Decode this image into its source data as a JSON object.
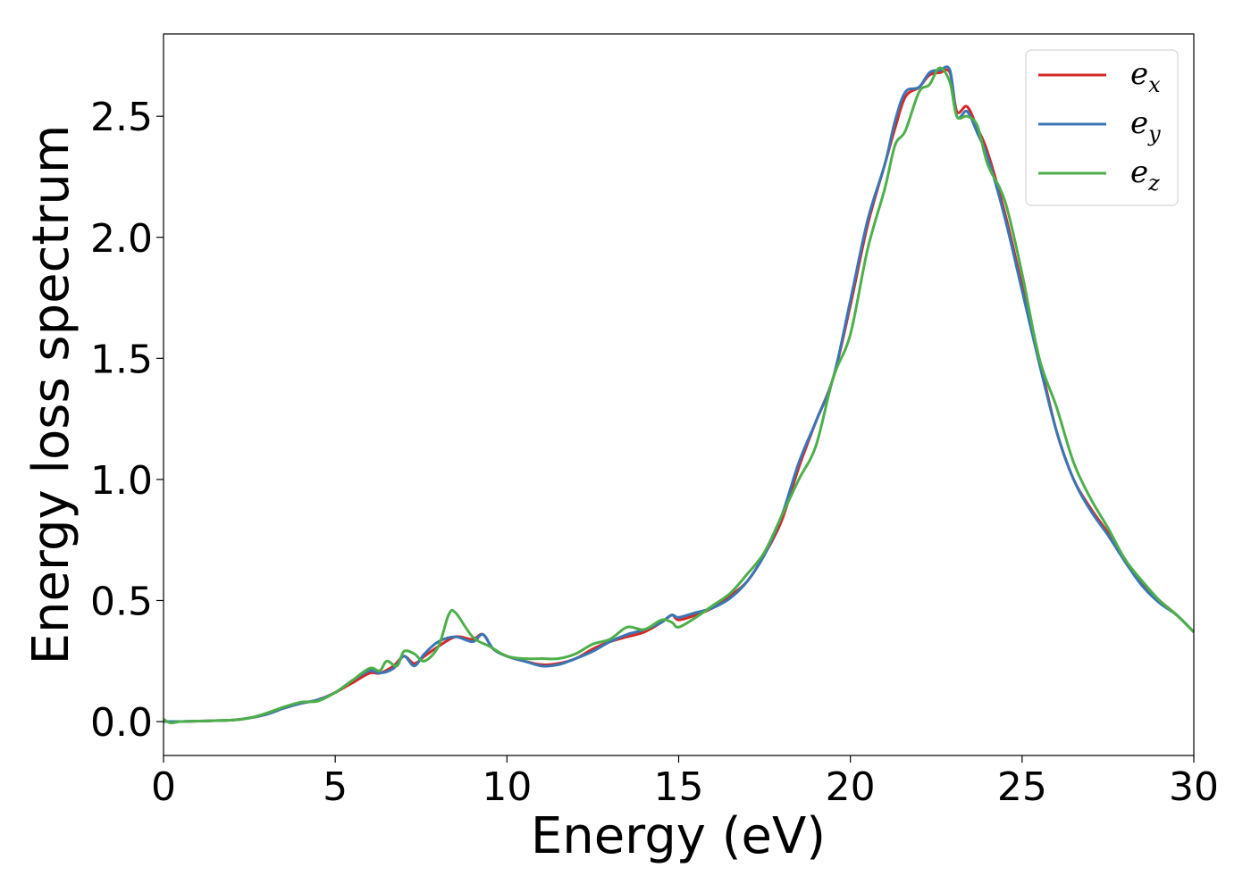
{
  "chart_data": {
    "type": "line",
    "title": "",
    "xlabel": "Energy (eV)",
    "ylabel": "Energy loss spectrum",
    "xlim": [
      0,
      30
    ],
    "ylim": [
      -0.14,
      2.84
    ],
    "xticks": [
      0,
      5,
      10,
      15,
      20,
      25,
      30
    ],
    "xtick_labels": [
      "0",
      "5",
      "10",
      "15",
      "20",
      "25",
      "30"
    ],
    "yticks": [
      0.0,
      0.5,
      1.0,
      1.5,
      2.0,
      2.5
    ],
    "ytick_labels": [
      "0.0",
      "0.5",
      "1.0",
      "1.5",
      "2.0",
      "2.5"
    ],
    "grid": false,
    "legend_position": "top-right",
    "series": [
      {
        "name": "e_x",
        "label_base": "e",
        "label_sub": "x",
        "color": "#d62728",
        "points": [
          [
            0,
            0.0
          ],
          [
            0.2,
            0.0
          ],
          [
            0.5,
            0.0
          ],
          [
            1,
            0.002
          ],
          [
            2,
            0.006
          ],
          [
            2.5,
            0.015
          ],
          [
            3,
            0.03
          ],
          [
            3.5,
            0.055
          ],
          [
            4,
            0.075
          ],
          [
            4.5,
            0.09
          ],
          [
            5,
            0.12
          ],
          [
            5.5,
            0.16
          ],
          [
            6,
            0.2
          ],
          [
            6.3,
            0.2
          ],
          [
            6.7,
            0.23
          ],
          [
            7,
            0.27
          ],
          [
            7.3,
            0.24
          ],
          [
            7.6,
            0.27
          ],
          [
            8,
            0.31
          ],
          [
            8.5,
            0.35
          ],
          [
            9,
            0.34
          ],
          [
            9.3,
            0.36
          ],
          [
            9.6,
            0.3
          ],
          [
            10,
            0.27
          ],
          [
            10.5,
            0.25
          ],
          [
            11,
            0.235
          ],
          [
            11.5,
            0.24
          ],
          [
            12,
            0.26
          ],
          [
            12.5,
            0.3
          ],
          [
            13,
            0.33
          ],
          [
            13.5,
            0.35
          ],
          [
            14,
            0.37
          ],
          [
            14.5,
            0.41
          ],
          [
            14.8,
            0.44
          ],
          [
            15,
            0.42
          ],
          [
            15.5,
            0.44
          ],
          [
            16,
            0.47
          ],
          [
            16.5,
            0.52
          ],
          [
            17,
            0.58
          ],
          [
            17.5,
            0.69
          ],
          [
            18,
            0.83
          ],
          [
            18.5,
            1.05
          ],
          [
            19,
            1.24
          ],
          [
            19.5,
            1.42
          ],
          [
            20,
            1.72
          ],
          [
            20.5,
            2.05
          ],
          [
            21,
            2.3
          ],
          [
            21.3,
            2.45
          ],
          [
            21.6,
            2.58
          ],
          [
            22,
            2.62
          ],
          [
            22.3,
            2.67
          ],
          [
            22.6,
            2.68
          ],
          [
            22.9,
            2.68
          ],
          [
            23.1,
            2.52
          ],
          [
            23.4,
            2.54
          ],
          [
            23.7,
            2.45
          ],
          [
            24,
            2.35
          ],
          [
            24.5,
            2.1
          ],
          [
            25,
            1.8
          ],
          [
            25.5,
            1.5
          ],
          [
            26,
            1.2
          ],
          [
            26.5,
            1.0
          ],
          [
            27,
            0.88
          ],
          [
            27.5,
            0.78
          ],
          [
            28,
            0.67
          ],
          [
            28.5,
            0.57
          ],
          [
            29,
            0.5
          ],
          [
            29.5,
            0.44
          ],
          [
            30,
            0.37
          ]
        ]
      },
      {
        "name": "e_y",
        "label_base": "e",
        "label_sub": "y",
        "color": "#3a76b4",
        "points": [
          [
            0,
            0.0
          ],
          [
            0.2,
            0.0
          ],
          [
            0.5,
            0.0
          ],
          [
            1,
            0.002
          ],
          [
            2,
            0.006
          ],
          [
            2.5,
            0.015
          ],
          [
            3,
            0.03
          ],
          [
            3.5,
            0.055
          ],
          [
            4,
            0.075
          ],
          [
            4.5,
            0.09
          ],
          [
            5,
            0.12
          ],
          [
            5.5,
            0.17
          ],
          [
            6,
            0.21
          ],
          [
            6.3,
            0.2
          ],
          [
            6.7,
            0.22
          ],
          [
            7,
            0.27
          ],
          [
            7.3,
            0.23
          ],
          [
            7.6,
            0.28
          ],
          [
            8,
            0.33
          ],
          [
            8.5,
            0.35
          ],
          [
            9,
            0.33
          ],
          [
            9.3,
            0.36
          ],
          [
            9.6,
            0.3
          ],
          [
            10,
            0.27
          ],
          [
            10.5,
            0.25
          ],
          [
            11,
            0.23
          ],
          [
            11.5,
            0.235
          ],
          [
            12,
            0.26
          ],
          [
            12.5,
            0.29
          ],
          [
            13,
            0.33
          ],
          [
            13.5,
            0.36
          ],
          [
            14,
            0.38
          ],
          [
            14.5,
            0.41
          ],
          [
            14.8,
            0.44
          ],
          [
            15,
            0.43
          ],
          [
            15.5,
            0.45
          ],
          [
            16,
            0.47
          ],
          [
            16.5,
            0.51
          ],
          [
            17,
            0.58
          ],
          [
            17.5,
            0.69
          ],
          [
            18,
            0.85
          ],
          [
            18.5,
            1.07
          ],
          [
            19,
            1.24
          ],
          [
            19.5,
            1.42
          ],
          [
            20,
            1.74
          ],
          [
            20.5,
            2.07
          ],
          [
            21,
            2.3
          ],
          [
            21.3,
            2.48
          ],
          [
            21.6,
            2.6
          ],
          [
            22,
            2.62
          ],
          [
            22.3,
            2.68
          ],
          [
            22.6,
            2.69
          ],
          [
            22.9,
            2.69
          ],
          [
            23.1,
            2.5
          ],
          [
            23.4,
            2.52
          ],
          [
            23.7,
            2.43
          ],
          [
            24,
            2.33
          ],
          [
            24.5,
            2.08
          ],
          [
            25,
            1.78
          ],
          [
            25.5,
            1.48
          ],
          [
            26,
            1.2
          ],
          [
            26.5,
            1.0
          ],
          [
            27,
            0.87
          ],
          [
            27.5,
            0.77
          ],
          [
            28,
            0.66
          ],
          [
            28.5,
            0.56
          ],
          [
            29,
            0.49
          ],
          [
            29.5,
            0.44
          ],
          [
            30,
            0.37
          ]
        ]
      },
      {
        "name": "e_z",
        "label_base": "e",
        "label_sub": "z",
        "color": "#4daf4a",
        "points": [
          [
            0,
            0.01
          ],
          [
            0.2,
            -0.005
          ],
          [
            0.5,
            0.0
          ],
          [
            1,
            0.002
          ],
          [
            2,
            0.006
          ],
          [
            2.5,
            0.015
          ],
          [
            3,
            0.035
          ],
          [
            3.5,
            0.06
          ],
          [
            4,
            0.08
          ],
          [
            4.5,
            0.085
          ],
          [
            5,
            0.12
          ],
          [
            5.5,
            0.17
          ],
          [
            6,
            0.22
          ],
          [
            6.3,
            0.21
          ],
          [
            6.5,
            0.25
          ],
          [
            6.8,
            0.23
          ],
          [
            7,
            0.29
          ],
          [
            7.3,
            0.28
          ],
          [
            7.6,
            0.25
          ],
          [
            8,
            0.31
          ],
          [
            8.3,
            0.44
          ],
          [
            8.5,
            0.45
          ],
          [
            9,
            0.35
          ],
          [
            9.5,
            0.31
          ],
          [
            10,
            0.27
          ],
          [
            10.5,
            0.26
          ],
          [
            11,
            0.26
          ],
          [
            11.5,
            0.26
          ],
          [
            12,
            0.28
          ],
          [
            12.5,
            0.32
          ],
          [
            13,
            0.34
          ],
          [
            13.5,
            0.39
          ],
          [
            14,
            0.38
          ],
          [
            14.5,
            0.42
          ],
          [
            14.8,
            0.41
          ],
          [
            15,
            0.39
          ],
          [
            15.5,
            0.43
          ],
          [
            16,
            0.48
          ],
          [
            16.5,
            0.53
          ],
          [
            17,
            0.61
          ],
          [
            17.5,
            0.7
          ],
          [
            18,
            0.85
          ],
          [
            18.5,
            1.0
          ],
          [
            19,
            1.14
          ],
          [
            19.5,
            1.42
          ],
          [
            20,
            1.6
          ],
          [
            20.5,
            1.95
          ],
          [
            21,
            2.2
          ],
          [
            21.3,
            2.38
          ],
          [
            21.6,
            2.44
          ],
          [
            22,
            2.6
          ],
          [
            22.3,
            2.63
          ],
          [
            22.6,
            2.7
          ],
          [
            22.9,
            2.64
          ],
          [
            23.1,
            2.5
          ],
          [
            23.4,
            2.5
          ],
          [
            23.7,
            2.46
          ],
          [
            24,
            2.3
          ],
          [
            24.5,
            2.15
          ],
          [
            25,
            1.85
          ],
          [
            25.5,
            1.5
          ],
          [
            26,
            1.3
          ],
          [
            26.5,
            1.07
          ],
          [
            27,
            0.92
          ],
          [
            27.5,
            0.8
          ],
          [
            28,
            0.67
          ],
          [
            28.5,
            0.58
          ],
          [
            29,
            0.5
          ],
          [
            29.5,
            0.44
          ],
          [
            30,
            0.37
          ]
        ]
      }
    ]
  }
}
